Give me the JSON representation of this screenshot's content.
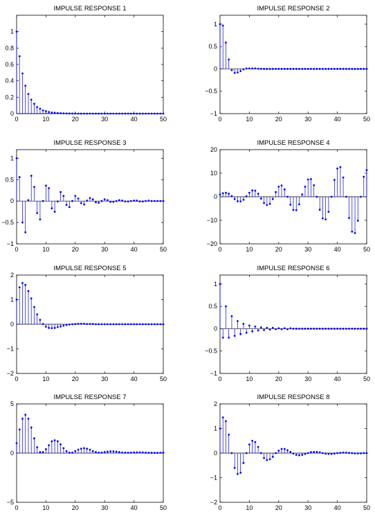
{
  "figure": {
    "stem_color": "#0000ff",
    "axis_color": "#000000",
    "zero_line_color": "#000000"
  },
  "chart_data": [
    {
      "type": "stem",
      "title": "IMPULSE RESPONSE 1",
      "xlim": [
        0,
        50
      ],
      "ylim": [
        0,
        1.2
      ],
      "xticks": [
        0,
        10,
        20,
        30,
        40,
        50
      ],
      "yticks": [
        0,
        0.2,
        0.4,
        0.6,
        0.8,
        1
      ],
      "yticklabels": [
        "0",
        "0.2",
        "0.4",
        "0.6",
        "0.8",
        "1"
      ],
      "x_start": 0,
      "values": [
        1.0,
        0.7,
        0.49,
        0.34,
        0.24,
        0.17,
        0.12,
        0.08,
        0.06,
        0.04,
        0.03,
        0.02,
        0.014,
        0.01,
        0.007,
        0.005,
        0.003,
        0.002,
        0.002,
        0.001,
        0.001,
        0,
        0,
        0,
        0,
        0,
        0,
        0,
        0,
        0,
        0,
        0,
        0,
        0,
        0,
        0,
        0,
        0,
        0,
        0,
        0,
        0,
        0,
        0,
        0,
        0,
        0,
        0,
        0,
        0,
        0
      ]
    },
    {
      "type": "stem",
      "title": "IMPULSE RESPONSE 2",
      "xlim": [
        0,
        50
      ],
      "ylim": [
        -1,
        1.2
      ],
      "xticks": [
        0,
        10,
        20,
        30,
        40,
        50
      ],
      "yticks": [
        -1,
        -0.5,
        0,
        0.5,
        1
      ],
      "yticklabels": [
        "−1",
        "−0.5",
        "0",
        "0.5",
        "1"
      ],
      "x_start": 0,
      "values": [
        1.0,
        0.97,
        0.59,
        0.21,
        -0.03,
        -0.09,
        -0.08,
        -0.05,
        -0.01,
        0.01,
        0.01,
        0.01,
        0.01,
        0.005,
        0.002,
        0,
        0,
        0,
        0,
        0,
        0,
        0,
        0,
        0,
        0,
        0,
        0,
        0,
        0,
        0,
        0,
        0,
        0,
        0,
        0,
        0,
        0,
        0,
        0,
        0,
        0,
        0,
        0,
        0,
        0,
        0,
        0,
        0,
        0,
        0,
        0
      ]
    },
    {
      "type": "stem",
      "title": "IMPULSE RESPONSE 3",
      "xlim": [
        0,
        50
      ],
      "ylim": [
        -1,
        1.2
      ],
      "xticks": [
        0,
        10,
        20,
        30,
        40,
        50
      ],
      "yticks": [
        -1,
        -0.5,
        0,
        0.5,
        1
      ],
      "yticklabels": [
        "−1",
        "−0.5",
        "0",
        "0.5",
        "1"
      ],
      "x_start": 0,
      "values": [
        1.0,
        0.56,
        -0.5,
        -0.73,
        0.02,
        0.59,
        0.33,
        -0.28,
        -0.43,
        0.0,
        0.36,
        0.3,
        -0.17,
        -0.25,
        -0.01,
        0.21,
        0.12,
        -0.09,
        -0.14,
        0.0,
        0.12,
        0.06,
        -0.05,
        -0.08,
        0.01,
        0.07,
        0.04,
        -0.03,
        -0.04,
        0.0,
        0.04,
        0.02,
        -0.02,
        -0.02,
        0.0,
        0.02,
        0.01,
        -0.01,
        -0.01,
        0.0,
        0.01,
        0.01,
        -0.01,
        -0.01,
        0.0,
        0.01,
        0.0,
        0.0,
        0.0,
        0.0,
        0.0
      ]
    },
    {
      "type": "stem",
      "title": "IMPULSE RESPONSE 4",
      "xlim": [
        0,
        50
      ],
      "ylim": [
        -20,
        20
      ],
      "xticks": [
        0,
        10,
        20,
        30,
        40,
        50
      ],
      "yticks": [
        -20,
        -10,
        0,
        10,
        20
      ],
      "yticklabels": [
        "−20",
        "−10",
        "0",
        "10",
        "20"
      ],
      "x_start": 0,
      "values": [
        1.0,
        1.5,
        1.7,
        1.3,
        0.3,
        -1.0,
        -1.9,
        -2.0,
        -1.3,
        0.2,
        1.7,
        2.7,
        2.6,
        1.3,
        -0.8,
        -2.7,
        -3.5,
        -3.0,
        -1.0,
        2.0,
        4.3,
        4.8,
        3.1,
        0.0,
        -3.4,
        -5.6,
        -5.7,
        -3.2,
        1.0,
        4.3,
        7.3,
        7.5,
        4.9,
        0.0,
        -5.5,
        -9.2,
        -9.6,
        -6.4,
        0.0,
        7.2,
        12.0,
        12.6,
        8.2,
        0.0,
        -9.0,
        -14.8,
        -15.4,
        -10.2,
        0.0,
        8.5,
        11.3
      ]
    },
    {
      "type": "stem",
      "title": "IMPULSE RESPONSE 5",
      "xlim": [
        0,
        50
      ],
      "ylim": [
        -2,
        2
      ],
      "xticks": [
        0,
        10,
        20,
        30,
        40,
        50
      ],
      "yticks": [
        -2,
        -1,
        0,
        1,
        2
      ],
      "yticklabels": [
        "−2",
        "−1",
        "0",
        "1",
        "2"
      ],
      "x_start": 0,
      "values": [
        1.0,
        1.5,
        1.68,
        1.6,
        1.35,
        1.05,
        0.7,
        0.4,
        0.18,
        0.01,
        -0.1,
        -0.15,
        -0.16,
        -0.15,
        -0.12,
        -0.09,
        -0.06,
        -0.03,
        -0.01,
        0.0,
        0.01,
        0.02,
        0.02,
        0.02,
        0.01,
        0.01,
        0.01,
        0.0,
        0.0,
        0.0,
        0.0,
        0,
        0,
        0,
        0,
        0,
        0,
        0,
        0,
        0,
        0,
        0,
        0,
        0,
        0,
        0,
        0,
        0,
        0,
        0,
        0
      ]
    },
    {
      "type": "stem",
      "title": "IMPULSE RESPONSE 6",
      "xlim": [
        0,
        50
      ],
      "ylim": [
        -1,
        1.2
      ],
      "xticks": [
        0,
        10,
        20,
        30,
        40,
        50
      ],
      "yticks": [
        -1,
        -0.5,
        0,
        0.5,
        1
      ],
      "yticklabels": [
        "−1",
        "−0.5",
        "0",
        "0.5",
        "1"
      ],
      "x_start": 0,
      "values": [
        1.0,
        -0.2,
        0.5,
        -0.2,
        0.28,
        -0.16,
        0.17,
        -0.12,
        0.11,
        -0.09,
        0.07,
        -0.06,
        0.05,
        -0.04,
        0.03,
        -0.03,
        0.02,
        -0.02,
        0.02,
        -0.01,
        0.01,
        -0.01,
        0.01,
        -0.01,
        0.01,
        0,
        0,
        0,
        0,
        0,
        0,
        0,
        0,
        0,
        0,
        0,
        0,
        0,
        0,
        0,
        0,
        0,
        0,
        0,
        0,
        0,
        0,
        0,
        0,
        0,
        0
      ]
    },
    {
      "type": "stem",
      "title": "IMPULSE RESPONSE 7",
      "xlim": [
        0,
        50
      ],
      "ylim": [
        -5,
        5
      ],
      "xticks": [
        0,
        10,
        20,
        30,
        40,
        50
      ],
      "yticks": [
        -5,
        0,
        5
      ],
      "yticklabels": [
        "−5",
        "0",
        "5"
      ],
      "x_start": 0,
      "values": [
        1.0,
        2.4,
        3.5,
        3.9,
        3.5,
        2.6,
        1.5,
        0.6,
        0.1,
        0.1,
        0.4,
        0.8,
        1.2,
        1.3,
        1.2,
        0.9,
        0.5,
        0.2,
        0.05,
        0.05,
        0.2,
        0.35,
        0.45,
        0.5,
        0.45,
        0.35,
        0.2,
        0.1,
        0.05,
        0.05,
        0.1,
        0.15,
        0.18,
        0.18,
        0.15,
        0.1,
        0.06,
        0.04,
        0.04,
        0.05,
        0.07,
        0.08,
        0.08,
        0.07,
        0.05,
        0.04,
        0.03,
        0.03,
        0.03,
        0.04,
        0.04
      ]
    },
    {
      "type": "stem",
      "title": "IMPULSE RESPONSE 8",
      "xlim": [
        0,
        50
      ],
      "ylim": [
        -2,
        2
      ],
      "xticks": [
        0,
        10,
        20,
        30,
        40,
        50
      ],
      "yticks": [
        -2,
        -1,
        0,
        1,
        2
      ],
      "yticklabels": [
        "−2",
        "−1",
        "0",
        "1",
        "2"
      ],
      "x_start": 0,
      "values": [
        1.0,
        1.45,
        1.3,
        0.75,
        0.0,
        -0.6,
        -0.85,
        -0.8,
        -0.4,
        0.0,
        0.35,
        0.5,
        0.45,
        0.25,
        0.0,
        -0.2,
        -0.28,
        -0.25,
        -0.15,
        0.0,
        0.1,
        0.17,
        0.17,
        0.12,
        0.05,
        -0.02,
        -0.07,
        -0.09,
        -0.07,
        -0.03,
        0.0,
        0.04,
        0.05,
        0.05,
        0.03,
        0.0,
        -0.02,
        -0.03,
        -0.03,
        -0.02,
        0.0,
        0.01,
        0.02,
        0.02,
        0.01,
        0.0,
        -0.01,
        -0.01,
        -0.01,
        0.0,
        0.0
      ]
    }
  ]
}
